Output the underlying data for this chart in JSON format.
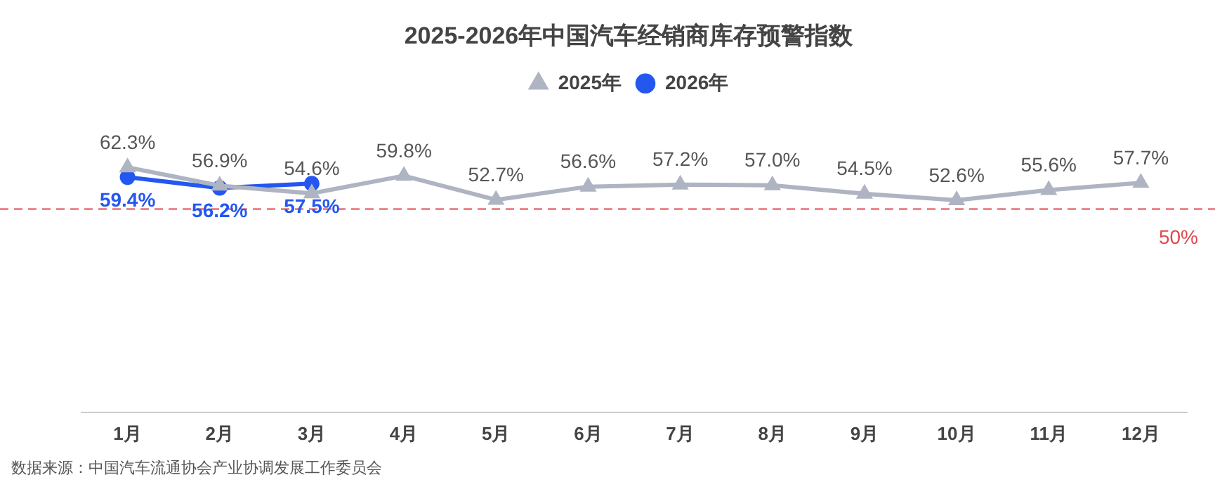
{
  "chart_data": {
    "type": "line",
    "title": "2025-2026年中国汽车经销商库存预警指数",
    "categories": [
      "1月",
      "2月",
      "3月",
      "4月",
      "5月",
      "6月",
      "7月",
      "8月",
      "9月",
      "10月",
      "11月",
      "12月"
    ],
    "series": [
      {
        "name": "2025年",
        "color": "#aeb4c2",
        "marker": "triangle",
        "values": [
          62.3,
          56.9,
          54.6,
          59.8,
          52.7,
          56.6,
          57.2,
          57.0,
          54.5,
          52.6,
          55.6,
          57.7
        ],
        "value_labels": [
          "62.3%",
          "56.9%",
          "54.6%",
          "59.8%",
          "52.7%",
          "56.6%",
          "57.2%",
          "57.0%",
          "54.5%",
          "52.6%",
          "55.6%",
          "57.7%"
        ]
      },
      {
        "name": "2026年",
        "color": "#2357f0",
        "marker": "circle",
        "values": [
          59.4,
          56.2,
          57.5,
          null,
          null,
          null,
          null,
          null,
          null,
          null,
          null,
          null
        ],
        "value_labels": [
          "59.4%",
          "56.2%",
          "57.5%",
          null,
          null,
          null,
          null,
          null,
          null,
          null,
          null,
          null
        ]
      }
    ],
    "tick_labels": "x",
    "grid": false,
    "legend": "top",
    "ref_lines": [
      {
        "axis": "y",
        "value": 50,
        "label": "50%",
        "color": "#e0474c",
        "line_style": "dashed"
      }
    ],
    "annotations": [
      "数据来源：中国汽车流通协会产业协调发展工作委员会"
    ]
  }
}
